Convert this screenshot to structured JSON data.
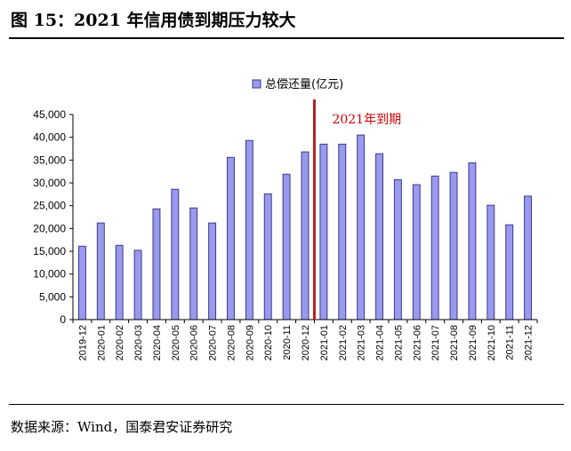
{
  "header": {
    "figure_title": "图 15：2021 年信用债到期压力较大"
  },
  "footer": {
    "source": "数据来源：Wind，国泰君安证券研究"
  },
  "chart_data": {
    "type": "bar",
    "categories": [
      "2019-12",
      "2020-01",
      "2020-02",
      "2020-03",
      "2020-04",
      "2020-05",
      "2020-06",
      "2020-07",
      "2020-08",
      "2020-09",
      "2020-10",
      "2020-11",
      "2020-12",
      "2021-01",
      "2021-02",
      "2021-03",
      "2021-04",
      "2021-05",
      "2021-06",
      "2021-07",
      "2021-08",
      "2021-09",
      "2021-10",
      "2021-11",
      "2021-12"
    ],
    "series": [
      {
        "name": "总偿还量(亿元)",
        "values": [
          16100,
          21200,
          16300,
          15200,
          24300,
          28600,
          24500,
          21200,
          35600,
          39300,
          27600,
          31900,
          36800,
          38500,
          38500,
          40500,
          36400,
          30700,
          29600,
          31500,
          32300,
          34400,
          25100,
          20800,
          27100
        ]
      }
    ],
    "ylim": [
      0,
      45000
    ],
    "yticks": [
      "0",
      "5,000",
      "10,000",
      "15,000",
      "20,000",
      "25,000",
      "30,000",
      "35,000",
      "40,000",
      "45,000"
    ],
    "legend_position": "top-center",
    "grid": false,
    "colors": {
      "bar_fill": "#9999ee",
      "bar_stroke": "#3a3a8a",
      "marker_line": "#b22222",
      "annotation": "#cc0000"
    },
    "annotation": {
      "text": "2021年到期",
      "at_boundary_between": [
        "2020-12",
        "2021-01"
      ]
    }
  }
}
